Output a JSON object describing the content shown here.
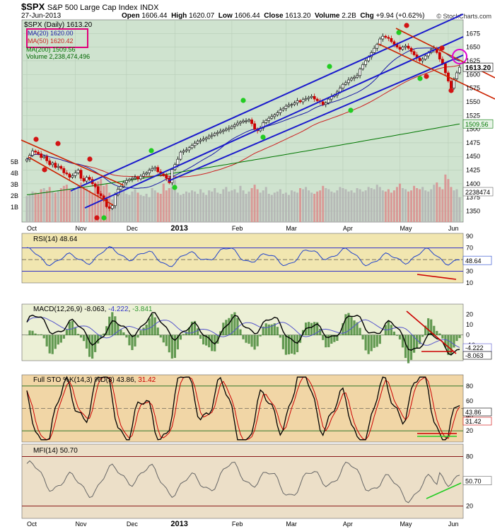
{
  "header": {
    "symbol": "$SPX",
    "name": "S&P 500 Large Cap Index",
    "exchange": "INDX",
    "date": "27-Jun-2013",
    "open_label": "Open",
    "open": "1606.44",
    "high_label": "High",
    "high": "1620.07",
    "low_label": "Low",
    "low": "1606.44",
    "close_label": "Close",
    "close": "1613.20",
    "volume_label": "Volume",
    "volume": "2.2B",
    "chg_label": "Chg",
    "chg": "+9.94 (+0.62%)",
    "watermark": "© StockCharts.com"
  },
  "colors": {
    "price_bg": "#cfe3cf",
    "rsi_bg": "#f1e6b0",
    "macd_bg": "#ecf0d6",
    "sto_bg": "#f1d6a6",
    "mfi_bg": "#ecdfc8",
    "up": "#000000",
    "down": "#cc0000",
    "ma20": "#1a1aa6",
    "ma50": "#cc2222",
    "ma200": "#007700",
    "channel": "#1a1acc",
    "down_channel": "#cc2200"
  },
  "chart_data": [
    {
      "type": "candlestick",
      "title": "$SPX (Daily) 1613.20",
      "legend": [
        {
          "label": "MA(20) 1620.00",
          "color": "#1a1aa6"
        },
        {
          "label": "MA(50) 1620.42",
          "color": "#cc2222"
        },
        {
          "label": "MA(200) 1509.56",
          "color": "#007700"
        },
        {
          "label": "Volume 2,238,474,496",
          "color": "#006600"
        }
      ],
      "ylim": [
        1330,
        1700
      ],
      "yticks": [
        1350,
        1375,
        1400,
        1425,
        1450,
        1475,
        1500,
        1525,
        1550,
        1575,
        1600,
        1625,
        1650,
        1675
      ],
      "volume_ticks": [
        "1B",
        "2B",
        "3B",
        "4B",
        "5B"
      ],
      "x_labels": [
        "Oct",
        "Nov",
        "Dec",
        "2013",
        "Feb",
        "Mar",
        "Apr",
        "May",
        "Jun"
      ],
      "last_close_label": "1613.20",
      "ma200_label": "1509.56",
      "volume_label": "2238474",
      "series": {
        "close": [
          1445,
          1452,
          1460,
          1458,
          1455,
          1448,
          1450,
          1442,
          1435,
          1438,
          1430,
          1432,
          1428,
          1420,
          1418,
          1412,
          1415,
          1420,
          1425,
          1410,
          1405,
          1412,
          1408,
          1400,
          1395,
          1382,
          1378,
          1372,
          1358,
          1355,
          1360,
          1380,
          1390,
          1395,
          1402,
          1406,
          1408,
          1410,
          1412,
          1409,
          1414,
          1418,
          1420,
          1425,
          1428,
          1430,
          1422,
          1418,
          1416,
          1410,
          1402,
          1426,
          1435,
          1445,
          1458,
          1460,
          1462,
          1466,
          1470,
          1474,
          1478,
          1480,
          1482,
          1484,
          1487,
          1489,
          1492,
          1494,
          1496,
          1498,
          1500,
          1502,
          1505,
          1508,
          1511,
          1513,
          1515,
          1515,
          1517,
          1510,
          1500,
          1497,
          1502,
          1512,
          1516,
          1520,
          1523,
          1526,
          1530,
          1535,
          1538,
          1542,
          1544,
          1545,
          1548,
          1552,
          1550,
          1554,
          1556,
          1558,
          1560,
          1555,
          1552,
          1550,
          1545,
          1548,
          1555,
          1560,
          1562,
          1568,
          1575,
          1582,
          1585,
          1590,
          1593,
          1595,
          1598,
          1610,
          1618,
          1625,
          1632,
          1640,
          1648,
          1655,
          1665,
          1670,
          1668,
          1666,
          1660,
          1655,
          1650,
          1646,
          1650,
          1652,
          1648,
          1642,
          1636,
          1630,
          1625,
          1628,
          1634,
          1640,
          1645,
          1648,
          1640,
          1628,
          1620,
          1603,
          1588,
          1575,
          1592,
          1603,
          1613.2
        ]
      },
      "ma200_range": [
        1380,
        1509.56
      ],
      "volume_billion": [
        2.3,
        2.4,
        2.7,
        2.6,
        2.5,
        2.9,
        3.0,
        2.8,
        3.1,
        2.7,
        2.6,
        2.8,
        3.0,
        3.2,
        3.3,
        2.9,
        2.7,
        2.8,
        3.2,
        3.5,
        3.1,
        3.0,
        2.8,
        2.6,
        3.3,
        3.6,
        3.8,
        3.2,
        3.4,
        2.6,
        2.0,
        2.5,
        2.4,
        2.6,
        2.8,
        2.5,
        2.4,
        2.7,
        2.9,
        2.6,
        2.4,
        2.3,
        2.5,
        2.2,
        3.0,
        2.8,
        2.6,
        2.5,
        3.4,
        2.8,
        3.0,
        3.1,
        3.7,
        2.6,
        2.4,
        2.5,
        2.7,
        2.6,
        2.8,
        2.7,
        2.5,
        2.9,
        2.6,
        2.4,
        2.8,
        2.7,
        3.0,
        2.6,
        2.5,
        2.9,
        3.1,
        2.7,
        2.8,
        2.9,
        2.6,
        3.2,
        2.8,
        2.5,
        2.7,
        3.0,
        3.3,
        2.9,
        2.6,
        2.8,
        3.1,
        2.5,
        2.4,
        2.6,
        2.7,
        2.9,
        2.5,
        2.6,
        2.4,
        2.8,
        2.7,
        2.6,
        3.0,
        2.9,
        3.1,
        2.8,
        2.6,
        2.5,
        2.7,
        2.8,
        3.2,
        3.0,
        2.9,
        2.7,
        2.6,
        2.8,
        3.1,
        3.0,
        2.9,
        2.7,
        2.8,
        2.6,
        3.0,
        2.9,
        2.7,
        2.8,
        3.1,
        3.0,
        2.9,
        3.3,
        3.1,
        2.8,
        2.7,
        2.9,
        2.6,
        2.8,
        3.1,
        3.4,
        3.0,
        2.9,
        2.7,
        2.8,
        3.2,
        3.0,
        2.9,
        3.1,
        2.8,
        2.7,
        2.9,
        3.3,
        3.5,
        3.1,
        2.9,
        4.2,
        3.8,
        3.1,
        2.8,
        2.9,
        2.2
      ]
    },
    {
      "type": "line",
      "title": "RSI(14) 48.64",
      "ylim": [
        10,
        95
      ],
      "yticks": [
        10,
        30,
        50,
        70,
        90
      ],
      "levels": [
        30,
        70
      ],
      "last_label": "48.64"
    },
    {
      "type": "line",
      "title": "MACD(12,26,9)",
      "values_text": [
        "-8.063",
        "-4.222",
        "-3.841"
      ],
      "ylim": [
        -25,
        30
      ],
      "yticks": [
        -20,
        -10,
        0,
        10,
        20
      ],
      "last_labels": [
        "-4.222",
        "-8.063"
      ]
    },
    {
      "type": "line",
      "title": "Full STO %K(14,3) %D(3)",
      "values_text": [
        "43.86",
        "31.42"
      ],
      "ylim": [
        5,
        95
      ],
      "yticks": [
        20,
        40,
        60,
        80
      ],
      "levels": [
        20,
        80
      ],
      "last_labels": [
        "43.86",
        "31.42"
      ]
    },
    {
      "type": "line",
      "title": "MFI(14) 50.70",
      "ylim": [
        5,
        95
      ],
      "yticks": [
        20,
        50,
        80
      ],
      "levels": [
        20,
        80
      ],
      "last_label": "50.70"
    }
  ]
}
